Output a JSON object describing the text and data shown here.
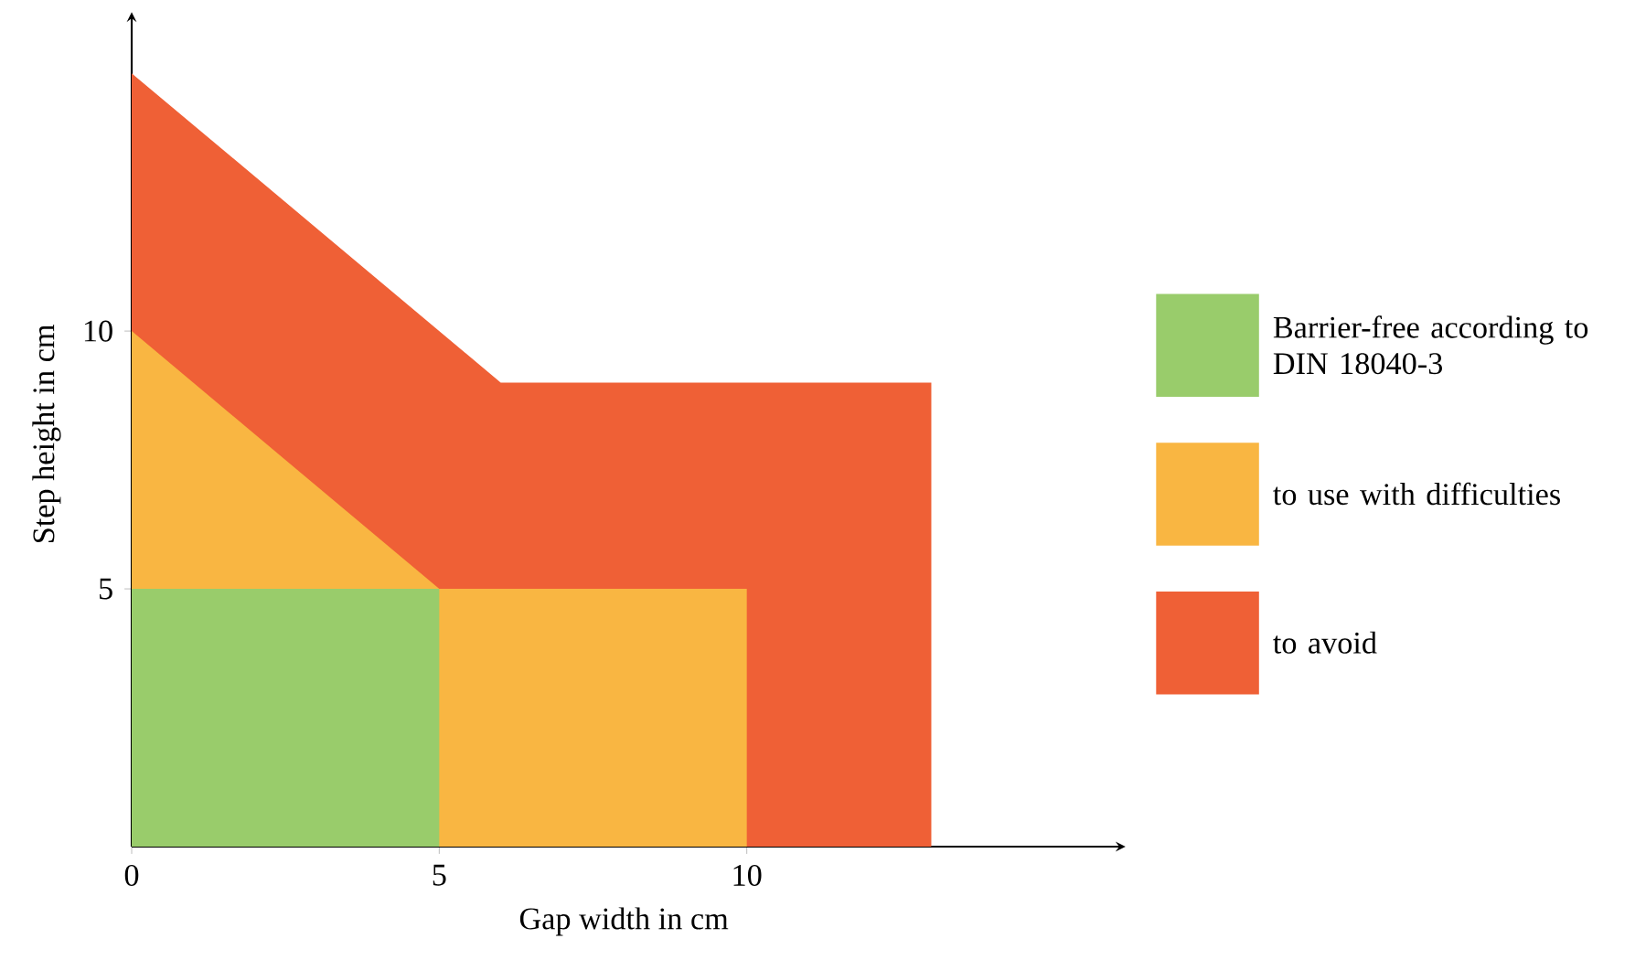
{
  "chart_data": {
    "type": "area",
    "xlabel": "Gap width in cm",
    "ylabel": "Step height in cm",
    "xlim": [
      0,
      16
    ],
    "ylim": [
      0,
      16
    ],
    "xticks": [
      0,
      5,
      10
    ],
    "yticks": [
      5,
      10
    ],
    "legend": "right",
    "grid": false,
    "series": [
      {
        "name": "Barrier-free according to DIN 18040-3",
        "color": "#99cc6b",
        "x": [
          0,
          5,
          5
        ],
        "values": [
          5,
          5,
          0
        ]
      },
      {
        "name": "to use with difficulties",
        "color": "#f9b642",
        "x": [
          0,
          5,
          5,
          10,
          10
        ],
        "values": [
          10,
          5,
          5,
          5,
          0
        ]
      },
      {
        "name": "to avoid",
        "color": "#ef6036",
        "x": [
          0,
          6,
          13,
          13
        ],
        "values": [
          15,
          9,
          9,
          0
        ]
      }
    ]
  }
}
